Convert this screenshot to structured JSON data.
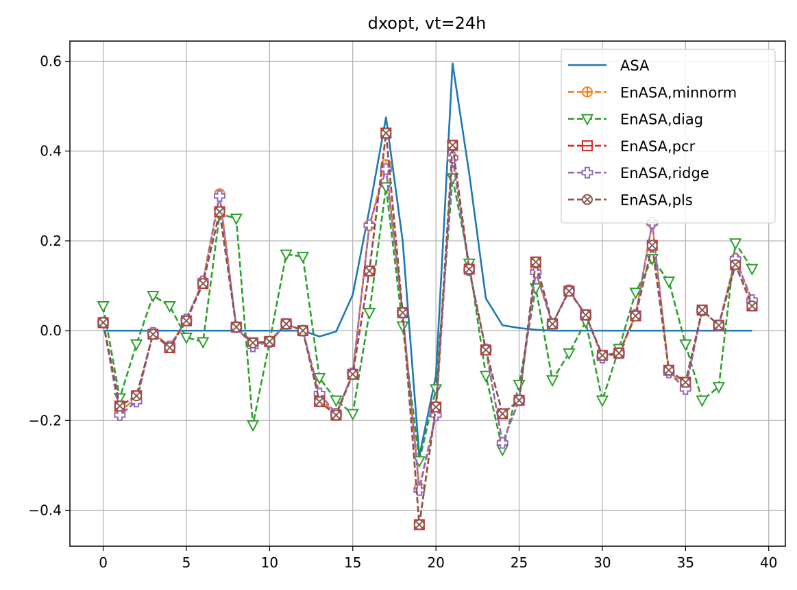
{
  "chart_data": {
    "type": "line",
    "title": "dxopt, vt=24h",
    "xlabel": "",
    "ylabel": "",
    "xlim": [
      -2,
      41
    ],
    "ylim": [
      -0.48,
      0.645
    ],
    "xticks": [
      0,
      5,
      10,
      15,
      20,
      25,
      30,
      35,
      40
    ],
    "xtick_labels": [
      "0",
      "5",
      "10",
      "15",
      "20",
      "25",
      "30",
      "35",
      "40"
    ],
    "yticks": [
      -0.4,
      -0.2,
      0.0,
      0.2,
      0.4,
      0.6
    ],
    "ytick_labels": [
      "−0.4",
      "−0.2",
      "0.0",
      "0.2",
      "0.4",
      "0.6"
    ],
    "grid": true,
    "legend_position": "top-right",
    "x": [
      0,
      1,
      2,
      3,
      4,
      5,
      6,
      7,
      8,
      9,
      10,
      11,
      12,
      13,
      14,
      15,
      16,
      17,
      18,
      19,
      20,
      21,
      22,
      23,
      24,
      25,
      26,
      27,
      28,
      29,
      30,
      31,
      32,
      33,
      34,
      35,
      36,
      37,
      38,
      39
    ],
    "series": [
      {
        "name": "ASA",
        "color": "#1f77b4",
        "linestyle": "solid",
        "marker": "none",
        "values": [
          0,
          0,
          0,
          0,
          0,
          0,
          0,
          0,
          0,
          0,
          0,
          0,
          0,
          -0.013,
          -0.002,
          0.08,
          0.27,
          0.475,
          0.2,
          -0.28,
          -0.1,
          0.595,
          0.35,
          0.072,
          0.012,
          0.006,
          0.002,
          0.0,
          0,
          0,
          0,
          0,
          0,
          0,
          0,
          0,
          0,
          0,
          0,
          0
        ]
      },
      {
        "name": "EnASA,minnorm",
        "color": "#ff7f0e",
        "linestyle": "dashed",
        "marker": "circle-plus",
        "values": [
          0.018,
          -0.18,
          -0.15,
          -0.005,
          -0.035,
          0.025,
          0.11,
          0.305,
          0.008,
          -0.03,
          -0.025,
          0.015,
          0.0,
          -0.15,
          -0.185,
          -0.095,
          0.235,
          0.37,
          0.04,
          -0.35,
          -0.185,
          0.385,
          0.135,
          -0.042,
          -0.25,
          -0.155,
          0.135,
          0.015,
          0.09,
          0.035,
          -0.055,
          -0.05,
          0.035,
          0.24,
          -0.09,
          -0.125,
          0.045,
          0.012,
          0.16,
          0.065
        ]
      },
      {
        "name": "EnASA,diag",
        "color": "#2ca02c",
        "linestyle": "dashed",
        "marker": "triangle-down",
        "values": [
          0.055,
          -0.15,
          -0.03,
          0.078,
          0.055,
          -0.015,
          -0.025,
          0.26,
          0.25,
          -0.21,
          -0.025,
          0.17,
          0.165,
          -0.105,
          -0.155,
          -0.185,
          0.04,
          0.32,
          0.01,
          -0.29,
          -0.13,
          0.34,
          0.15,
          -0.1,
          -0.265,
          -0.12,
          0.095,
          -0.11,
          -0.05,
          0.02,
          -0.155,
          -0.04,
          0.085,
          0.16,
          0.11,
          -0.03,
          -0.155,
          -0.125,
          0.195,
          0.138
        ]
      },
      {
        "name": "EnASA,pcr",
        "color": "#d62728",
        "linestyle": "dashed",
        "marker": "square-minus",
        "values": [
          0.018,
          -0.168,
          -0.145,
          -0.008,
          -0.038,
          0.022,
          0.105,
          0.265,
          0.008,
          -0.027,
          -0.024,
          0.015,
          0.0,
          -0.158,
          -0.188,
          -0.097,
          0.133,
          0.44,
          0.04,
          -0.432,
          -0.17,
          0.413,
          0.137,
          -0.043,
          -0.185,
          -0.155,
          0.153,
          0.015,
          0.088,
          0.035,
          -0.055,
          -0.05,
          0.033,
          0.19,
          -0.088,
          -0.115,
          0.046,
          0.012,
          0.147,
          0.055
        ]
      },
      {
        "name": "EnASA,ridge",
        "color": "#9467bd",
        "linestyle": "dashed",
        "marker": "plus-filled",
        "values": [
          0.018,
          -0.188,
          -0.158,
          -0.005,
          -0.035,
          0.025,
          0.11,
          0.3,
          0.008,
          -0.035,
          -0.025,
          0.015,
          0.0,
          -0.14,
          -0.185,
          -0.095,
          0.235,
          0.36,
          0.04,
          -0.355,
          -0.188,
          0.385,
          0.135,
          -0.042,
          -0.25,
          -0.155,
          0.13,
          0.015,
          0.09,
          0.035,
          -0.06,
          -0.05,
          0.035,
          0.24,
          -0.093,
          -0.13,
          0.045,
          0.012,
          0.16,
          0.068
        ]
      },
      {
        "name": "EnASA,pls",
        "color": "#8c564b",
        "linestyle": "dashed",
        "marker": "circle-x",
        "values": [
          0.018,
          -0.168,
          -0.145,
          -0.008,
          -0.038,
          0.022,
          0.105,
          0.265,
          0.008,
          -0.027,
          -0.024,
          0.015,
          0.0,
          -0.158,
          -0.188,
          -0.097,
          0.133,
          0.44,
          0.04,
          -0.432,
          -0.17,
          0.413,
          0.137,
          -0.043,
          -0.185,
          -0.155,
          0.153,
          0.015,
          0.088,
          0.035,
          -0.055,
          -0.05,
          0.033,
          0.19,
          -0.088,
          -0.115,
          0.046,
          0.012,
          0.147,
          0.055
        ]
      }
    ]
  }
}
